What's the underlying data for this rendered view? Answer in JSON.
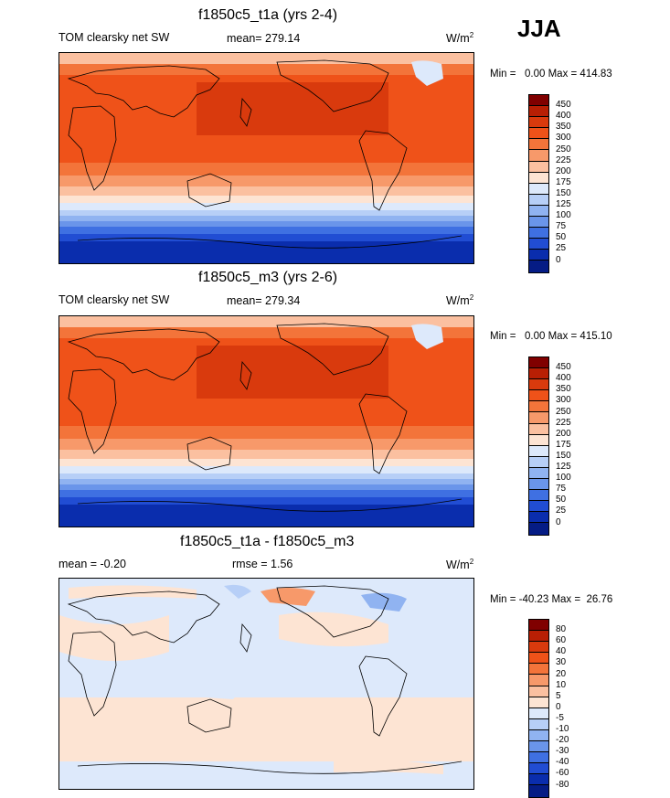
{
  "season": "JJA",
  "panels": [
    {
      "title": "f1850c5_t1a (yrs 2-4)",
      "left_label": "TOM clearsky net SW",
      "center_label": "mean= 279.14",
      "units": "W/m",
      "units_sup": "2",
      "minmax": "Min =   0.00 Max = 414.83",
      "colorbar": {
        "levels": [
          "450",
          "400",
          "350",
          "300",
          "250",
          "225",
          "200",
          "175",
          "150",
          "125",
          "100",
          "75",
          "50",
          "25",
          "0"
        ],
        "colors": [
          "#800000",
          "#b81f04",
          "#d93a0d",
          "#ef5219",
          "#f3743a",
          "#f7996a",
          "#fbc0a0",
          "#fde4d3",
          "#dde9fb",
          "#b7cff7",
          "#90b3f1",
          "#6a95ea",
          "#3f70e2",
          "#214dd3",
          "#0a2dad",
          "#051c85"
        ]
      }
    },
    {
      "title": "f1850c5_m3 (yrs 2-6)",
      "left_label": "TOM clearsky net SW",
      "center_label": "mean= 279.34",
      "units": "W/m",
      "units_sup": "2",
      "minmax": "Min =   0.00 Max = 415.10",
      "colorbar": {
        "levels": [
          "450",
          "400",
          "350",
          "300",
          "250",
          "225",
          "200",
          "175",
          "150",
          "125",
          "100",
          "75",
          "50",
          "25",
          "0"
        ],
        "colors": [
          "#800000",
          "#b81f04",
          "#d93a0d",
          "#ef5219",
          "#f3743a",
          "#f7996a",
          "#fbc0a0",
          "#fde4d3",
          "#dde9fb",
          "#b7cff7",
          "#90b3f1",
          "#6a95ea",
          "#3f70e2",
          "#214dd3",
          "#0a2dad",
          "#051c85"
        ]
      }
    },
    {
      "title": "f1850c5_t1a - f1850c5_m3",
      "left_label": "mean =  -0.20",
      "center_label": "rmse =   1.56",
      "units": "W/m",
      "units_sup": "2",
      "minmax": "Min = -40.23 Max =  26.76",
      "colorbar": {
        "levels": [
          "80",
          "60",
          "40",
          "30",
          "20",
          "10",
          "5",
          "0",
          "-5",
          "-10",
          "-20",
          "-30",
          "-40",
          "-60",
          "-80"
        ],
        "colors": [
          "#800000",
          "#b81f04",
          "#d93a0d",
          "#ef5219",
          "#f3743a",
          "#f7996a",
          "#fbc0a0",
          "#fde4d3",
          "#dde9fb",
          "#b7cff7",
          "#90b3f1",
          "#6a95ea",
          "#3f70e2",
          "#214dd3",
          "#0a2dad",
          "#051c85"
        ]
      }
    }
  ]
}
